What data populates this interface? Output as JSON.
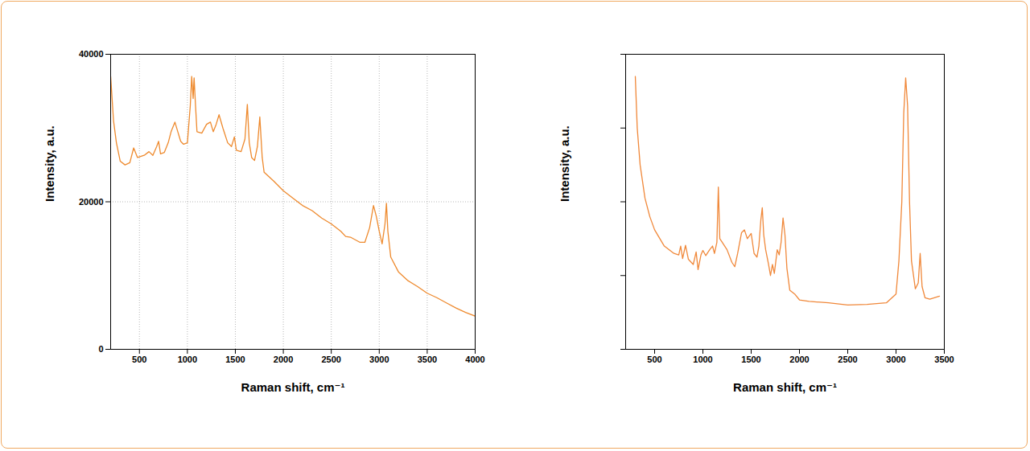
{
  "chart_data": [
    {
      "type": "line",
      "xlabel": "Raman shift, cm⁻¹",
      "ylabel": "Intensity, a.u.",
      "xlim": [
        200,
        4000
      ],
      "xticks": [
        500,
        1000,
        1500,
        2000,
        2500,
        3000,
        3500,
        4000
      ],
      "ylim": [
        0,
        40000
      ],
      "yticks": [
        0,
        20000,
        40000
      ],
      "grid": true,
      "color": "#ee8a2e",
      "x": [
        200,
        230,
        260,
        300,
        350,
        400,
        440,
        480,
        550,
        600,
        640,
        680,
        700,
        720,
        760,
        800,
        830,
        870,
        900,
        930,
        960,
        1000,
        1030,
        1045,
        1060,
        1070,
        1085,
        1100,
        1150,
        1200,
        1240,
        1270,
        1300,
        1330,
        1370,
        1420,
        1460,
        1490,
        1510,
        1560,
        1600,
        1625,
        1645,
        1670,
        1700,
        1730,
        1755,
        1780,
        1800,
        1850,
        1900,
        2000,
        2100,
        2200,
        2300,
        2400,
        2500,
        2600,
        2650,
        2700,
        2800,
        2850,
        2900,
        2940,
        2970,
        3000,
        3030,
        3060,
        3075,
        3090,
        3120,
        3200,
        3300,
        3400,
        3500,
        3600,
        3700,
        3800,
        3900,
        4000
      ],
      "values": [
        37000,
        31000,
        28000,
        25500,
        25000,
        25300,
        27300,
        26000,
        26300,
        26800,
        26300,
        27500,
        28200,
        26500,
        26700,
        28000,
        29500,
        30800,
        29500,
        28200,
        27800,
        28000,
        33000,
        37000,
        34000,
        36800,
        33000,
        29500,
        29300,
        30500,
        30800,
        29500,
        30500,
        31800,
        30000,
        28000,
        27500,
        28800,
        27000,
        26800,
        28500,
        33200,
        28000,
        26000,
        25600,
        27500,
        31500,
        26000,
        24000,
        23400,
        22800,
        21500,
        20500,
        19500,
        18800,
        17800,
        17000,
        16000,
        15300,
        15200,
        14500,
        14500,
        16500,
        19500,
        18000,
        16000,
        14300,
        17000,
        19800,
        16000,
        12500,
        10500,
        9300,
        8500,
        7600,
        7000,
        6300,
        5600,
        5000,
        4500
      ]
    },
    {
      "type": "line",
      "xlabel": "Raman shift, cm⁻¹",
      "ylabel": "Intensity, a.u.",
      "xlim": [
        200,
        3500
      ],
      "xticks": [
        500,
        1000,
        1500,
        2000,
        2500,
        3000,
        3500
      ],
      "ylim": [
        0,
        40000
      ],
      "yticks": [
        0,
        10000,
        20000,
        30000,
        40000
      ],
      "grid": false,
      "tick_labels": "x",
      "color": "#f0883a",
      "x": [
        300,
        320,
        350,
        400,
        450,
        500,
        600,
        700,
        750,
        770,
        790,
        820,
        850,
        900,
        930,
        950,
        980,
        1000,
        1030,
        1070,
        1100,
        1120,
        1145,
        1160,
        1175,
        1200,
        1250,
        1300,
        1330,
        1360,
        1400,
        1430,
        1460,
        1500,
        1530,
        1560,
        1580,
        1600,
        1615,
        1630,
        1650,
        1680,
        1700,
        1720,
        1740,
        1770,
        1790,
        1810,
        1830,
        1850,
        1870,
        1900,
        1950,
        2000,
        2100,
        2300,
        2500,
        2700,
        2900,
        2950,
        3000,
        3030,
        3060,
        3080,
        3100,
        3120,
        3140,
        3160,
        3200,
        3230,
        3250,
        3270,
        3300,
        3350,
        3450
      ],
      "values": [
        37000,
        30000,
        25000,
        20500,
        18000,
        16200,
        14000,
        13000,
        12800,
        14000,
        12300,
        14100,
        12200,
        11500,
        13200,
        10800,
        12800,
        13400,
        12700,
        13500,
        14000,
        13000,
        14500,
        22000,
        15000,
        14500,
        13500,
        11800,
        11200,
        13000,
        15800,
        16200,
        15000,
        15700,
        13000,
        12500,
        14000,
        17500,
        19200,
        15500,
        13500,
        11500,
        10000,
        11500,
        10300,
        13500,
        12800,
        14500,
        17800,
        15500,
        11000,
        8000,
        7500,
        6700,
        6500,
        6300,
        6000,
        6100,
        6300,
        6900,
        7500,
        12000,
        20000,
        32000,
        36800,
        33000,
        20000,
        12000,
        8200,
        9000,
        13000,
        8500,
        7000,
        6800,
        7200
      ]
    }
  ]
}
